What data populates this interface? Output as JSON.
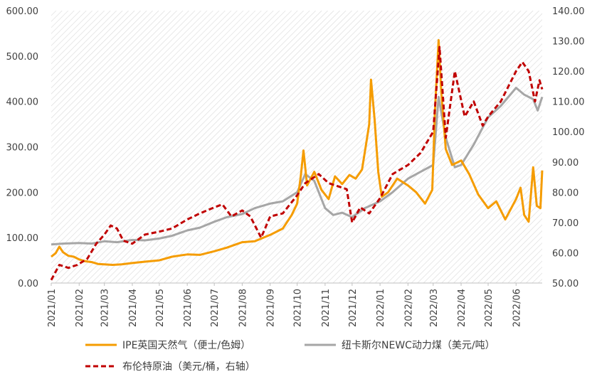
{
  "chart_data": {
    "type": "line",
    "title": "",
    "xlabel": "",
    "ylabel": "",
    "x_axis": {
      "tick_labels": [
        "2021/01",
        "2021/02",
        "2021/03",
        "2021/04",
        "2021/05",
        "2021/06",
        "2021/07",
        "2021/08",
        "2021/09",
        "2021/10",
        "2021/11",
        "2021/12",
        "2022/01",
        "2022/02",
        "2022/03",
        "2022/04",
        "2022/05",
        "2022/06"
      ],
      "range": [
        "2021-01-01",
        "2022-06-30"
      ]
    },
    "y_left": {
      "range": [
        0,
        600
      ],
      "tick_labels": [
        "0.00",
        "100.00",
        "200.00",
        "300.00",
        "400.00",
        "500.00",
        "600.00"
      ]
    },
    "y_right": {
      "range": [
        50,
        140
      ],
      "tick_labels": [
        "50.00",
        "60.00",
        "70.00",
        "80.00",
        "90.00",
        "100.00",
        "110.00",
        "120.00",
        "130.00",
        "140.00"
      ]
    },
    "background": "diagonal hatched light gray",
    "grid": false,
    "legend_position": "bottom",
    "series": [
      {
        "name": "IPE英国天然气（便士/色姆）",
        "axis": "left",
        "color": "#F59C00",
        "style": "solid",
        "points": [
          [
            "2021-01-01",
            58
          ],
          [
            "2021-01-06",
            66
          ],
          [
            "2021-01-10",
            80
          ],
          [
            "2021-01-14",
            68
          ],
          [
            "2021-01-20",
            60
          ],
          [
            "2021-01-26",
            58
          ],
          [
            "2021-02-01",
            52
          ],
          [
            "2021-02-08",
            48
          ],
          [
            "2021-02-15",
            46
          ],
          [
            "2021-02-22",
            42
          ],
          [
            "2021-03-01",
            41
          ],
          [
            "2021-03-10",
            40
          ],
          [
            "2021-03-20",
            41
          ],
          [
            "2021-04-01",
            44
          ],
          [
            "2021-04-15",
            47
          ],
          [
            "2021-05-01",
            50
          ],
          [
            "2021-05-15",
            58
          ],
          [
            "2021-06-01",
            63
          ],
          [
            "2021-06-15",
            62
          ],
          [
            "2021-07-01",
            70
          ],
          [
            "2021-07-15",
            78
          ],
          [
            "2021-08-01",
            90
          ],
          [
            "2021-08-15",
            92
          ],
          [
            "2021-09-01",
            106
          ],
          [
            "2021-09-15",
            120
          ],
          [
            "2021-09-25",
            150
          ],
          [
            "2021-10-01",
            175
          ],
          [
            "2021-10-05",
            235
          ],
          [
            "2021-10-08",
            292
          ],
          [
            "2021-10-12",
            215
          ],
          [
            "2021-10-20",
            245
          ],
          [
            "2021-10-28",
            205
          ],
          [
            "2021-11-05",
            185
          ],
          [
            "2021-11-12",
            235
          ],
          [
            "2021-11-20",
            218
          ],
          [
            "2021-11-28",
            238
          ],
          [
            "2021-12-05",
            230
          ],
          [
            "2021-12-12",
            250
          ],
          [
            "2021-12-16",
            300
          ],
          [
            "2021-12-20",
            350
          ],
          [
            "2021-12-22",
            448
          ],
          [
            "2021-12-26",
            360
          ],
          [
            "2021-12-30",
            245
          ],
          [
            "2022-01-03",
            190
          ],
          [
            "2022-01-10",
            200
          ],
          [
            "2022-01-20",
            230
          ],
          [
            "2022-02-01",
            215
          ],
          [
            "2022-02-10",
            200
          ],
          [
            "2022-02-20",
            175
          ],
          [
            "2022-02-28",
            205
          ],
          [
            "2022-03-03",
            380
          ],
          [
            "2022-03-07",
            535
          ],
          [
            "2022-03-10",
            420
          ],
          [
            "2022-03-15",
            295
          ],
          [
            "2022-03-22",
            260
          ],
          [
            "2022-04-01",
            270
          ],
          [
            "2022-04-10",
            240
          ],
          [
            "2022-04-20",
            195
          ],
          [
            "2022-05-01",
            165
          ],
          [
            "2022-05-10",
            180
          ],
          [
            "2022-05-20",
            140
          ],
          [
            "2022-06-01",
            185
          ],
          [
            "2022-06-06",
            210
          ],
          [
            "2022-06-10",
            150
          ],
          [
            "2022-06-15",
            135
          ],
          [
            "2022-06-20",
            255
          ],
          [
            "2022-06-24",
            170
          ],
          [
            "2022-06-28",
            165
          ],
          [
            "2022-06-30",
            248
          ]
        ]
      },
      {
        "name": "纽卡斯尔NEWC动力煤（美元/吨）",
        "axis": "left",
        "color": "#A6A6A6",
        "style": "solid",
        "points": [
          [
            "2021-01-01",
            85
          ],
          [
            "2021-01-15",
            87
          ],
          [
            "2021-02-01",
            88
          ],
          [
            "2021-02-15",
            87
          ],
          [
            "2021-03-01",
            92
          ],
          [
            "2021-03-15",
            90
          ],
          [
            "2021-04-01",
            95
          ],
          [
            "2021-04-15",
            94
          ],
          [
            "2021-05-01",
            98
          ],
          [
            "2021-05-15",
            104
          ],
          [
            "2021-06-01",
            116
          ],
          [
            "2021-06-15",
            122
          ],
          [
            "2021-07-01",
            135
          ],
          [
            "2021-07-15",
            145
          ],
          [
            "2021-08-01",
            152
          ],
          [
            "2021-08-15",
            165
          ],
          [
            "2021-09-01",
            175
          ],
          [
            "2021-09-15",
            180
          ],
          [
            "2021-10-01",
            200
          ],
          [
            "2021-10-10",
            240
          ],
          [
            "2021-10-20",
            225
          ],
          [
            "2021-11-01",
            165
          ],
          [
            "2021-11-10",
            150
          ],
          [
            "2021-11-20",
            155
          ],
          [
            "2021-12-01",
            145
          ],
          [
            "2021-12-15",
            165
          ],
          [
            "2022-01-01",
            180
          ],
          [
            "2022-01-15",
            200
          ],
          [
            "2022-02-01",
            230
          ],
          [
            "2022-02-15",
            245
          ],
          [
            "2022-03-01",
            260
          ],
          [
            "2022-03-07",
            410
          ],
          [
            "2022-03-15",
            320
          ],
          [
            "2022-03-25",
            255
          ],
          [
            "2022-04-01",
            260
          ],
          [
            "2022-04-15",
            305
          ],
          [
            "2022-05-01",
            365
          ],
          [
            "2022-05-15",
            390
          ],
          [
            "2022-06-01",
            430
          ],
          [
            "2022-06-10",
            415
          ],
          [
            "2022-06-20",
            405
          ],
          [
            "2022-06-25",
            380
          ],
          [
            "2022-06-30",
            410
          ]
        ]
      },
      {
        "name": "布伦特原油（美元/桶，右轴）",
        "axis": "right",
        "color": "#C00000",
        "style": "dashed",
        "points": [
          [
            "2021-01-01",
            51
          ],
          [
            "2021-01-10",
            56
          ],
          [
            "2021-01-20",
            55
          ],
          [
            "2021-01-30",
            56
          ],
          [
            "2021-02-10",
            58
          ],
          [
            "2021-02-20",
            63
          ],
          [
            "2021-03-01",
            66
          ],
          [
            "2021-03-08",
            69
          ],
          [
            "2021-03-15",
            68
          ],
          [
            "2021-03-22",
            64
          ],
          [
            "2021-04-01",
            63
          ],
          [
            "2021-04-15",
            66
          ],
          [
            "2021-05-01",
            67
          ],
          [
            "2021-05-15",
            68
          ],
          [
            "2021-06-01",
            71
          ],
          [
            "2021-06-15",
            73
          ],
          [
            "2021-07-01",
            75
          ],
          [
            "2021-07-10",
            76
          ],
          [
            "2021-07-20",
            72
          ],
          [
            "2021-08-01",
            74
          ],
          [
            "2021-08-10",
            72
          ],
          [
            "2021-08-22",
            65
          ],
          [
            "2021-09-01",
            72
          ],
          [
            "2021-09-15",
            73
          ],
          [
            "2021-10-01",
            79
          ],
          [
            "2021-10-10",
            83
          ],
          [
            "2021-10-25",
            86
          ],
          [
            "2021-11-05",
            83
          ],
          [
            "2021-11-15",
            82
          ],
          [
            "2021-11-25",
            81
          ],
          [
            "2021-12-01",
            70
          ],
          [
            "2021-12-10",
            75
          ],
          [
            "2021-12-20",
            73
          ],
          [
            "2022-01-01",
            78
          ],
          [
            "2022-01-15",
            86
          ],
          [
            "2022-02-01",
            89
          ],
          [
            "2022-02-15",
            93
          ],
          [
            "2022-03-01",
            100
          ],
          [
            "2022-03-08",
            128
          ],
          [
            "2022-03-15",
            98
          ],
          [
            "2022-03-25",
            120
          ],
          [
            "2022-04-05",
            105
          ],
          [
            "2022-04-15",
            110
          ],
          [
            "2022-04-25",
            102
          ],
          [
            "2022-05-01",
            105
          ],
          [
            "2022-05-15",
            110
          ],
          [
            "2022-06-01",
            120
          ],
          [
            "2022-06-08",
            123
          ],
          [
            "2022-06-15",
            120
          ],
          [
            "2022-06-22",
            110
          ],
          [
            "2022-06-27",
            117
          ],
          [
            "2022-06-30",
            114
          ]
        ]
      }
    ]
  }
}
